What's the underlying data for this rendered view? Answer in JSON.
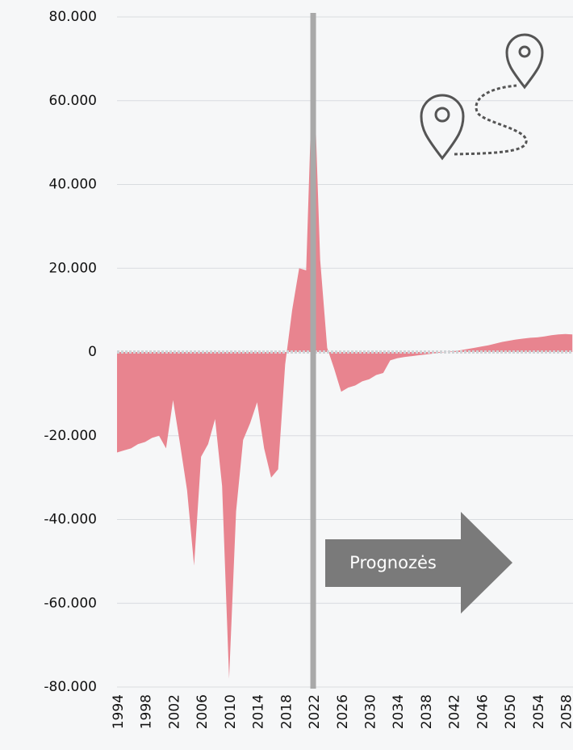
{
  "chart_data": {
    "type": "area",
    "color": "#e8848f",
    "x": [
      1994,
      1995,
      1996,
      1997,
      1998,
      1999,
      2000,
      2001,
      2002,
      2003,
      2004,
      2005,
      2006,
      2007,
      2008,
      2009,
      2010,
      2011,
      2012,
      2013,
      2014,
      2015,
      2016,
      2017,
      2018,
      2019,
      2020,
      2021,
      2022,
      2023,
      2024,
      2025,
      2026,
      2027,
      2028,
      2029,
      2030,
      2031,
      2032,
      2033,
      2034,
      2035,
      2036,
      2037,
      2038,
      2039,
      2040,
      2041,
      2042,
      2043,
      2044,
      2045,
      2046,
      2047,
      2048,
      2049,
      2050,
      2051,
      2052,
      2053,
      2054,
      2055,
      2056,
      2057,
      2058,
      2059
    ],
    "values": [
      -24000,
      -23500,
      -23000,
      -22000,
      -21500,
      -20500,
      -20000,
      -23000,
      -11500,
      -22000,
      -33000,
      -51000,
      -25000,
      -22000,
      -16000,
      -32000,
      -78000,
      -38000,
      -21000,
      -17000,
      -12000,
      -23000,
      -30000,
      -28000,
      -3000,
      10000,
      20000,
      19500,
      72000,
      22000,
      1000,
      -4000,
      -9500,
      -8500,
      -8000,
      -7000,
      -6500,
      -5500,
      -5000,
      -2000,
      -1500,
      -1200,
      -1000,
      -800,
      -600,
      -400,
      -200,
      0,
      200,
      400,
      700,
      1000,
      1300,
      1600,
      2000,
      2400,
      2700,
      3000,
      3200,
      3400,
      3500,
      3700,
      4000,
      4200,
      4300,
      4200
    ],
    "xlim": [
      1994,
      2059
    ],
    "xticks": [
      1994,
      1998,
      2002,
      2006,
      2010,
      2014,
      2018,
      2022,
      2026,
      2030,
      2034,
      2038,
      2042,
      2046,
      2050,
      2054,
      2058
    ],
    "ylim": [
      -80000,
      80000
    ],
    "yticks": [
      {
        "value": -80000,
        "label": "-80.000"
      },
      {
        "value": -60000,
        "label": "-60.000"
      },
      {
        "value": -40000,
        "label": "-40.000"
      },
      {
        "value": -20000,
        "label": "-20.000"
      },
      0,
      {
        "value": 20000,
        "label": "20.000"
      },
      {
        "value": 40000,
        "label": "40.000"
      },
      {
        "value": 60000,
        "label": "60.000"
      },
      {
        "value": 80000,
        "label": "80.000"
      }
    ],
    "grid": true,
    "forecast_start": 2022,
    "annotation": "Prognozės"
  }
}
